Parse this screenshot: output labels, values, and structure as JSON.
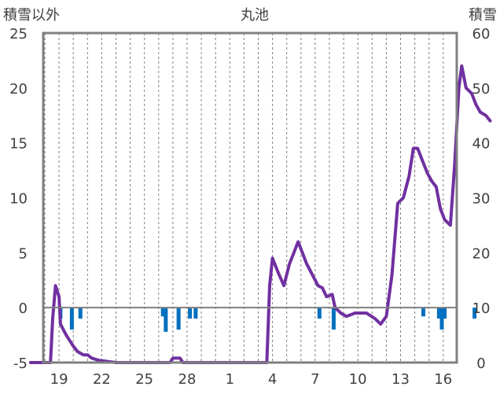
{
  "chart_data": {
    "type": "line",
    "title": "丸池",
    "left_axis_title": "積雪以外",
    "right_axis_title": "積雪",
    "y_left": {
      "min": -5,
      "max": 25,
      "ticks": [
        -5,
        0,
        5,
        10,
        15,
        20,
        25
      ]
    },
    "y_right": {
      "min": 0,
      "max": 60,
      "ticks": [
        0,
        10,
        20,
        30,
        40,
        50,
        60
      ]
    },
    "x_ticks": [
      "19",
      "22",
      "25",
      "28",
      "1",
      "4",
      "7",
      "10",
      "13",
      "16"
    ],
    "grid": "vertical-dashed",
    "colors": {
      "line": "#7030A0",
      "bars": "#0070C0",
      "axis": "#808080",
      "grid": "#808080",
      "text": "#404040"
    },
    "series": [
      {
        "type": "line",
        "axis": "left",
        "points": [
          [
            -1.0,
            -5
          ],
          [
            0.4,
            -5
          ],
          [
            0.55,
            -1
          ],
          [
            0.75,
            2
          ],
          [
            1.0,
            1
          ],
          [
            1.1,
            -1.5
          ],
          [
            1.5,
            -2.5
          ],
          [
            2.0,
            -3.5
          ],
          [
            2.3,
            -4
          ],
          [
            2.7,
            -4.3
          ],
          [
            3.0,
            -4.3
          ],
          [
            3.3,
            -4.6
          ],
          [
            3.8,
            -4.8
          ],
          [
            5.0,
            -5
          ],
          [
            8.8,
            -5
          ],
          [
            9.0,
            -4.6
          ],
          [
            9.5,
            -4.6
          ],
          [
            9.7,
            -5
          ],
          [
            15.6,
            -5
          ],
          [
            15.8,
            2
          ],
          [
            16.0,
            4.5
          ],
          [
            16.4,
            3.2
          ],
          [
            16.8,
            2
          ],
          [
            17.2,
            4
          ],
          [
            17.5,
            5
          ],
          [
            17.8,
            6
          ],
          [
            18.1,
            5
          ],
          [
            18.4,
            4
          ],
          [
            18.8,
            3
          ],
          [
            19.2,
            2
          ],
          [
            19.5,
            1.8
          ],
          [
            19.8,
            1
          ],
          [
            20.2,
            1.2
          ],
          [
            20.4,
            0
          ],
          [
            20.8,
            -0.5
          ],
          [
            21.2,
            -0.8
          ],
          [
            21.8,
            -0.5
          ],
          [
            22.3,
            -0.5
          ],
          [
            22.6,
            -0.5
          ],
          [
            23.2,
            -1
          ],
          [
            23.6,
            -1.5
          ],
          [
            24.0,
            -0.8
          ],
          [
            24.4,
            3
          ],
          [
            24.8,
            9.5
          ],
          [
            25.2,
            10
          ],
          [
            25.6,
            12
          ],
          [
            25.9,
            14.5
          ],
          [
            26.2,
            14.5
          ],
          [
            26.5,
            13.5
          ],
          [
            26.9,
            12.2
          ],
          [
            27.2,
            11.5
          ],
          [
            27.5,
            11
          ],
          [
            27.8,
            9
          ],
          [
            28.1,
            8
          ],
          [
            28.5,
            7.5
          ],
          [
            28.8,
            13
          ],
          [
            29.1,
            20
          ],
          [
            29.3,
            22
          ],
          [
            29.6,
            20
          ],
          [
            30.0,
            19.5
          ],
          [
            30.3,
            18.5
          ],
          [
            30.6,
            17.8
          ],
          [
            31.0,
            17.5
          ],
          [
            31.3,
            17
          ]
        ]
      },
      {
        "type": "bar",
        "axis": "left",
        "bars": [
          [
            1.1,
            -1
          ],
          [
            1.9,
            -2
          ],
          [
            2.5,
            -1
          ],
          [
            8.3,
            -0.8
          ],
          [
            8.5,
            -2.2
          ],
          [
            9.4,
            -2
          ],
          [
            10.2,
            -1
          ],
          [
            10.6,
            -1
          ],
          [
            19.3,
            -1
          ],
          [
            20.3,
            -2
          ],
          [
            26.6,
            -0.8
          ],
          [
            27.7,
            -1
          ],
          [
            27.9,
            -2
          ],
          [
            28.1,
            -1
          ],
          [
            30.2,
            -1
          ]
        ]
      }
    ]
  }
}
